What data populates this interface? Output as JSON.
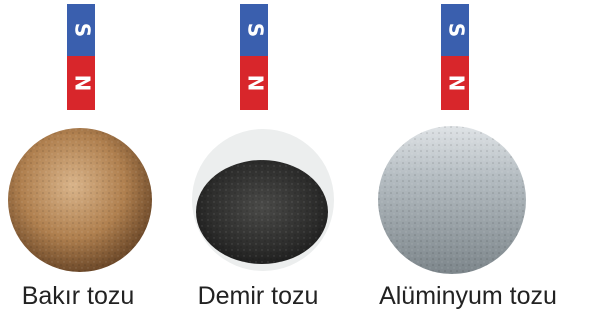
{
  "items": [
    {
      "label": "Bakır tozu",
      "magnet": {
        "top": "S",
        "bottom": "N"
      }
    },
    {
      "label": "Demir tozu",
      "magnet": {
        "top": "S",
        "bottom": "N"
      }
    },
    {
      "label": "Alüminyum tozu",
      "magnet": {
        "top": "S",
        "bottom": "N"
      }
    }
  ]
}
